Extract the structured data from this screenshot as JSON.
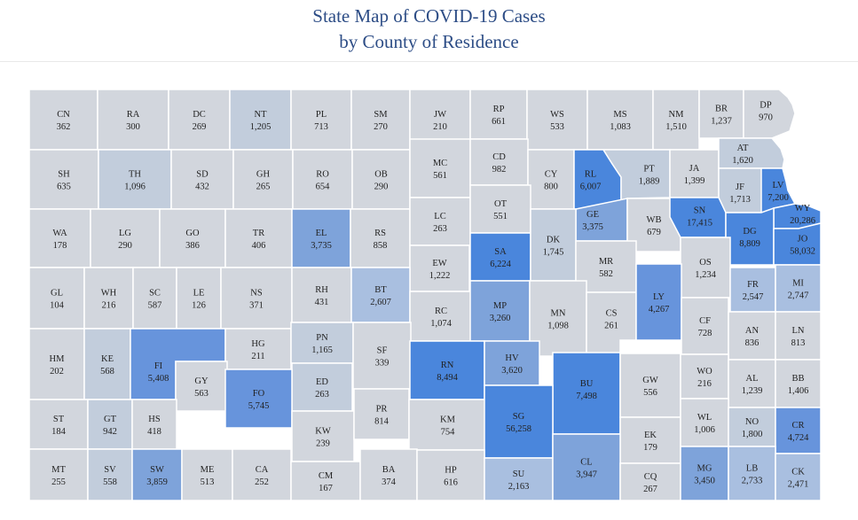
{
  "header": {
    "title_line1": "State Map of COVID-19 Cases",
    "title_line2": "by County of Residence"
  },
  "colors": {
    "border": "#ffffff",
    "text": "#222222",
    "title": "#2d4d86",
    "scale": {
      "lowest": "#d2d6dd",
      "low": "#c2cddc",
      "medium": "#a9bfe0",
      "high": "#7ea3da",
      "higher": "#6794dc",
      "highest": "#4a86dc"
    }
  },
  "counties": [
    {
      "abbr": "CN",
      "cases": "362"
    },
    {
      "abbr": "RA",
      "cases": "300"
    },
    {
      "abbr": "DC",
      "cases": "269"
    },
    {
      "abbr": "NT",
      "cases": "1,205"
    },
    {
      "abbr": "PL",
      "cases": "713"
    },
    {
      "abbr": "SM",
      "cases": "270"
    },
    {
      "abbr": "JW",
      "cases": "210"
    },
    {
      "abbr": "RP",
      "cases": "661"
    },
    {
      "abbr": "WS",
      "cases": "533"
    },
    {
      "abbr": "MS",
      "cases": "1,083"
    },
    {
      "abbr": "NM",
      "cases": "1,510"
    },
    {
      "abbr": "BR",
      "cases": "1,237"
    },
    {
      "abbr": "DP",
      "cases": "970"
    },
    {
      "abbr": "SH",
      "cases": "635"
    },
    {
      "abbr": "TH",
      "cases": "1,096"
    },
    {
      "abbr": "SD",
      "cases": "432"
    },
    {
      "abbr": "GH",
      "cases": "265"
    },
    {
      "abbr": "RO",
      "cases": "654"
    },
    {
      "abbr": "OB",
      "cases": "290"
    },
    {
      "abbr": "MC",
      "cases": "561"
    },
    {
      "abbr": "CD",
      "cases": "982"
    },
    {
      "abbr": "CY",
      "cases": "800"
    },
    {
      "abbr": "RL",
      "cases": "6,007"
    },
    {
      "abbr": "PT",
      "cases": "1,889"
    },
    {
      "abbr": "JA",
      "cases": "1,399"
    },
    {
      "abbr": "AT",
      "cases": "1,620"
    },
    {
      "abbr": "JF",
      "cases": "1,713"
    },
    {
      "abbr": "LV",
      "cases": "7,200"
    },
    {
      "abbr": "WY",
      "cases": "20,286"
    },
    {
      "abbr": "WA",
      "cases": "178"
    },
    {
      "abbr": "LG",
      "cases": "290"
    },
    {
      "abbr": "GO",
      "cases": "386"
    },
    {
      "abbr": "TR",
      "cases": "406"
    },
    {
      "abbr": "EL",
      "cases": "3,735"
    },
    {
      "abbr": "RS",
      "cases": "858"
    },
    {
      "abbr": "LC",
      "cases": "263"
    },
    {
      "abbr": "OT",
      "cases": "551"
    },
    {
      "abbr": "GE",
      "cases": "3,375"
    },
    {
      "abbr": "WB",
      "cases": "679"
    },
    {
      "abbr": "SN",
      "cases": "17,415"
    },
    {
      "abbr": "DG",
      "cases": "8,809"
    },
    {
      "abbr": "JO",
      "cases": "58,032"
    },
    {
      "abbr": "EW",
      "cases": "1,222"
    },
    {
      "abbr": "SA",
      "cases": "6,224"
    },
    {
      "abbr": "DK",
      "cases": "1,745"
    },
    {
      "abbr": "MR",
      "cases": "582"
    },
    {
      "abbr": "OS",
      "cases": "1,234"
    },
    {
      "abbr": "FR",
      "cases": "2,547"
    },
    {
      "abbr": "MI",
      "cases": "2,747"
    },
    {
      "abbr": "GL",
      "cases": "104"
    },
    {
      "abbr": "WH",
      "cases": "216"
    },
    {
      "abbr": "SC",
      "cases": "587"
    },
    {
      "abbr": "LE",
      "cases": "126"
    },
    {
      "abbr": "NS",
      "cases": "371"
    },
    {
      "abbr": "RH",
      "cases": "431"
    },
    {
      "abbr": "BT",
      "cases": "2,607"
    },
    {
      "abbr": "RC",
      "cases": "1,074"
    },
    {
      "abbr": "MP",
      "cases": "3,260"
    },
    {
      "abbr": "MN",
      "cases": "1,098"
    },
    {
      "abbr": "CS",
      "cases": "261"
    },
    {
      "abbr": "LY",
      "cases": "4,267"
    },
    {
      "abbr": "CF",
      "cases": "728"
    },
    {
      "abbr": "AN",
      "cases": "836"
    },
    {
      "abbr": "LN",
      "cases": "813"
    },
    {
      "abbr": "HM",
      "cases": "202"
    },
    {
      "abbr": "KE",
      "cases": "568"
    },
    {
      "abbr": "FI",
      "cases": "5,408"
    },
    {
      "abbr": "HG",
      "cases": "211"
    },
    {
      "abbr": "PN",
      "cases": "1,165"
    },
    {
      "abbr": "SF",
      "cases": "339"
    },
    {
      "abbr": "ED",
      "cases": "263"
    },
    {
      "abbr": "RN",
      "cases": "8,494"
    },
    {
      "abbr": "HV",
      "cases": "3,620"
    },
    {
      "abbr": "BU",
      "cases": "7,498"
    },
    {
      "abbr": "GW",
      "cases": "556"
    },
    {
      "abbr": "WO",
      "cases": "216"
    },
    {
      "abbr": "AL",
      "cases": "1,239"
    },
    {
      "abbr": "BB",
      "cases": "1,406"
    },
    {
      "abbr": "GY",
      "cases": "563"
    },
    {
      "abbr": "FO",
      "cases": "5,745"
    },
    {
      "abbr": "ST",
      "cases": "184"
    },
    {
      "abbr": "GT",
      "cases": "942"
    },
    {
      "abbr": "HS",
      "cases": "418"
    },
    {
      "abbr": "KW",
      "cases": "239"
    },
    {
      "abbr": "PR",
      "cases": "814"
    },
    {
      "abbr": "KM",
      "cases": "754"
    },
    {
      "abbr": "SG",
      "cases": "56,258"
    },
    {
      "abbr": "EK",
      "cases": "179"
    },
    {
      "abbr": "WL",
      "cases": "1,006"
    },
    {
      "abbr": "NO",
      "cases": "1,800"
    },
    {
      "abbr": "CR",
      "cases": "4,724"
    },
    {
      "abbr": "MT",
      "cases": "255"
    },
    {
      "abbr": "SV",
      "cases": "558"
    },
    {
      "abbr": "SW",
      "cases": "3,859"
    },
    {
      "abbr": "ME",
      "cases": "513"
    },
    {
      "abbr": "CA",
      "cases": "252"
    },
    {
      "abbr": "CM",
      "cases": "167"
    },
    {
      "abbr": "BA",
      "cases": "374"
    },
    {
      "abbr": "HP",
      "cases": "616"
    },
    {
      "abbr": "SU",
      "cases": "2,163"
    },
    {
      "abbr": "CL",
      "cases": "3,947"
    },
    {
      "abbr": "CQ",
      "cases": "267"
    },
    {
      "abbr": "MG",
      "cases": "3,450"
    },
    {
      "abbr": "LB",
      "cases": "2,733"
    },
    {
      "abbr": "CK",
      "cases": "2,471"
    }
  ]
}
